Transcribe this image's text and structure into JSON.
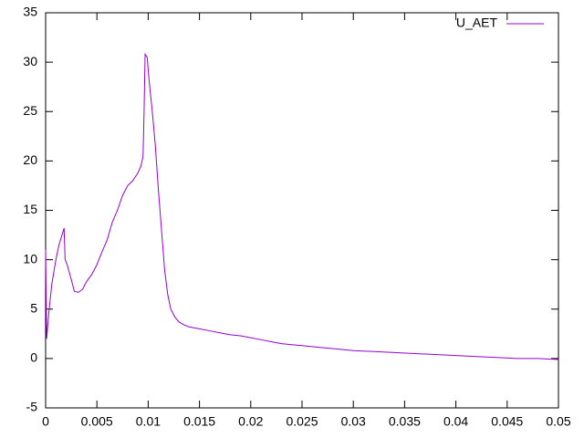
{
  "chart_data": {
    "type": "line",
    "x": [
      0,
      0.0001,
      0.0003,
      0.0006,
      0.001,
      0.0013,
      0.0016,
      0.0018,
      0.0019,
      0.0021,
      0.0025,
      0.0028,
      0.0032,
      0.0036,
      0.004,
      0.0045,
      0.005,
      0.0055,
      0.006,
      0.0065,
      0.007,
      0.0075,
      0.008,
      0.0085,
      0.009,
      0.0093,
      0.0095,
      0.0096,
      0.0097,
      0.0099,
      0.0101,
      0.0104,
      0.0107,
      0.011,
      0.0113,
      0.0116,
      0.0119,
      0.0122,
      0.0126,
      0.013,
      0.0135,
      0.014,
      0.015,
      0.016,
      0.017,
      0.018,
      0.019,
      0.02,
      0.021,
      0.022,
      0.023,
      0.024,
      0.025,
      0.026,
      0.027,
      0.028,
      0.029,
      0.03,
      0.032,
      0.034,
      0.036,
      0.038,
      0.04,
      0.042,
      0.044,
      0.046,
      0.048,
      0.05
    ],
    "series": [
      {
        "name": "U_AET",
        "color": "#9400d3",
        "values": [
          11,
          2,
          4.5,
          7.5,
          10,
          11.5,
          12.5,
          13.2,
          10,
          9.5,
          8,
          6.8,
          6.7,
          7,
          7.8,
          8.5,
          9.5,
          10.8,
          12,
          13.8,
          15,
          16.5,
          17.5,
          18,
          18.8,
          19.5,
          20.5,
          25,
          30.8,
          30.5,
          28,
          25,
          21.5,
          17,
          13,
          9,
          6.5,
          5,
          4.2,
          3.7,
          3.4,
          3.2,
          3,
          2.8,
          2.6,
          2.4,
          2.3,
          2.1,
          1.9,
          1.7,
          1.5,
          1.4,
          1.3,
          1.2,
          1.1,
          1,
          0.9,
          0.8,
          0.7,
          0.6,
          0.5,
          0.4,
          0.3,
          0.2,
          0.1,
          0,
          0,
          -0.1
        ]
      }
    ],
    "xlim": [
      0,
      0.05
    ],
    "xticks": [
      0,
      0.005,
      0.01,
      0.015,
      0.02,
      0.025,
      0.03,
      0.035,
      0.04,
      0.045,
      0.05
    ],
    "ylim": [
      -5,
      35
    ],
    "yticks": [
      -5,
      0,
      5,
      10,
      15,
      20,
      25,
      30,
      35
    ],
    "legend": "top-right"
  }
}
